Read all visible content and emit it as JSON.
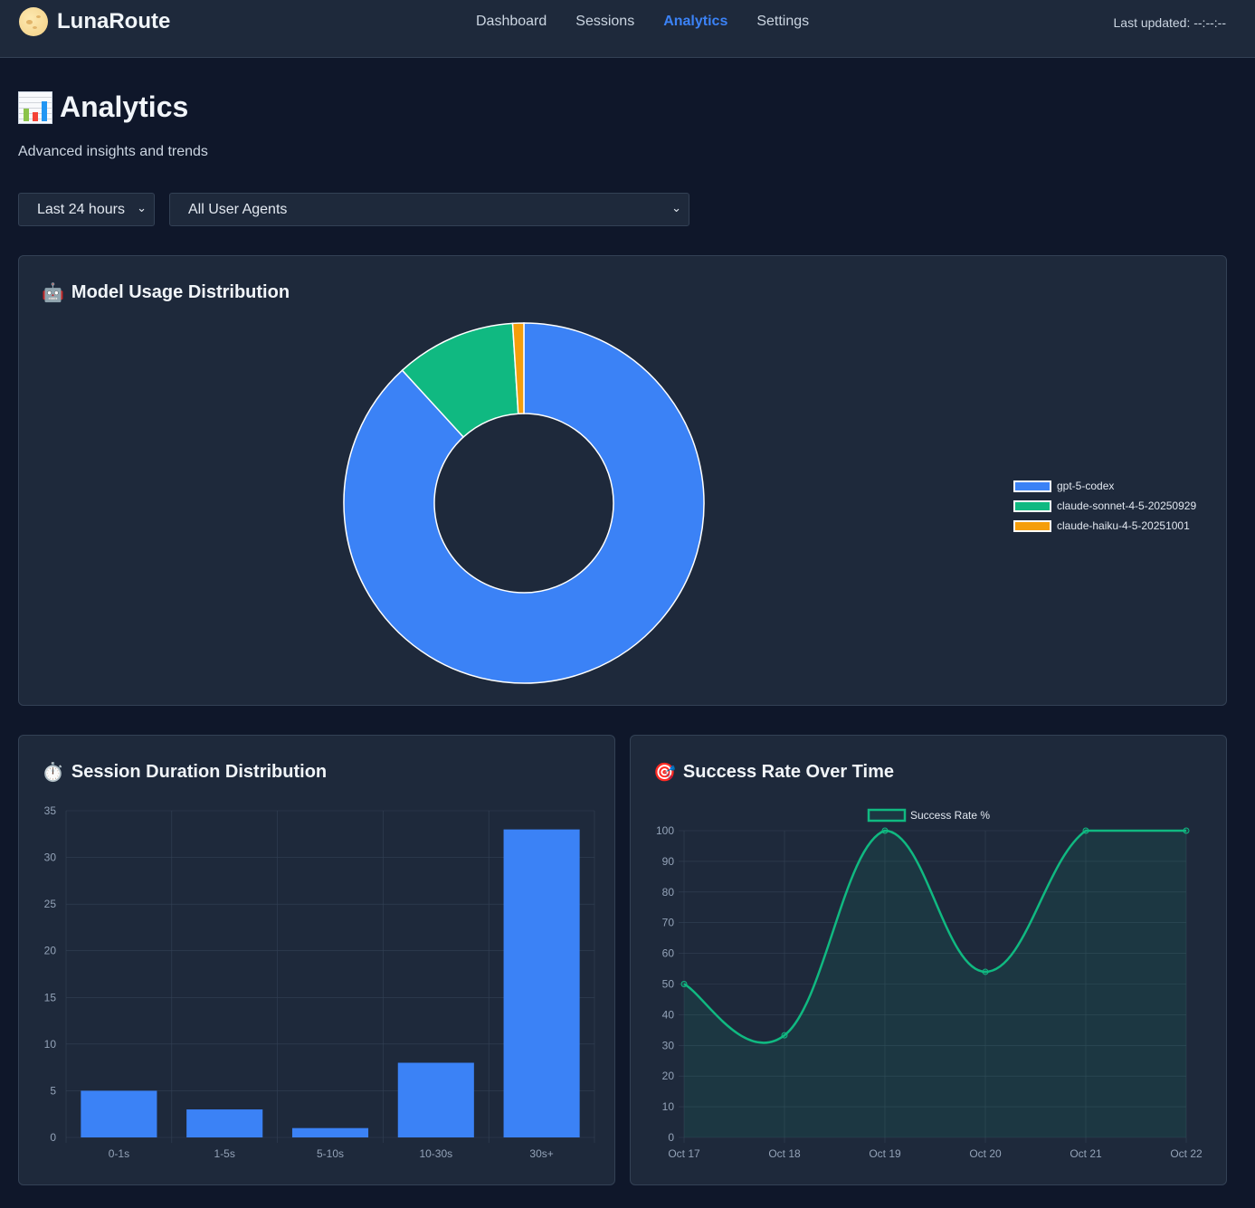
{
  "header": {
    "brand": "LunaRoute",
    "nav": [
      "Dashboard",
      "Sessions",
      "Analytics",
      "Settings"
    ],
    "active_nav": "Analytics",
    "last_updated": "Last updated: --:--:--"
  },
  "page": {
    "title": "Analytics",
    "subtitle": "Advanced insights and trends"
  },
  "filters": {
    "time_range": "Last 24 hours",
    "user_agent": "All User Agents"
  },
  "colors": {
    "blue": "#3b82f6",
    "green": "#10b981",
    "orange": "#f59e0b"
  },
  "model_card": {
    "title": "Model Usage Distribution",
    "icon": "robot-icon"
  },
  "duration_card": {
    "title": "Session Duration Distribution",
    "icon": "stopwatch-icon"
  },
  "success_card": {
    "title": "Success Rate Over Time",
    "icon": "target-icon"
  },
  "chart_data": [
    {
      "type": "pie",
      "subtype": "doughnut",
      "labels": [
        "gpt-5-codex",
        "claude-sonnet-4-5-20250929",
        "claude-haiku-4-5-20251001"
      ],
      "values": [
        88.2,
        10.8,
        1.0
      ],
      "colors": [
        "#3b82f6",
        "#10b981",
        "#f59e0b"
      ],
      "legend": "right"
    },
    {
      "type": "bar",
      "categories": [
        "0-1s",
        "1-5s",
        "5-10s",
        "10-30s",
        "30s+"
      ],
      "values": [
        5,
        3,
        1,
        8,
        33
      ],
      "ylim": [
        0,
        35
      ],
      "yticks": [
        0,
        5,
        10,
        15,
        20,
        25,
        30,
        35
      ],
      "grid": true
    },
    {
      "type": "area",
      "x": [
        "Oct 17",
        "Oct 18",
        "Oct 19",
        "Oct 20",
        "Oct 21",
        "Oct 22"
      ],
      "series": [
        {
          "name": "Success Rate %",
          "values": [
            50,
            33.3,
            100,
            54,
            100,
            100
          ]
        }
      ],
      "ylim": [
        0,
        100
      ],
      "yticks": [
        0,
        10,
        20,
        30,
        40,
        50,
        60,
        70,
        80,
        90,
        100
      ],
      "legend": "top",
      "grid": true
    }
  ]
}
